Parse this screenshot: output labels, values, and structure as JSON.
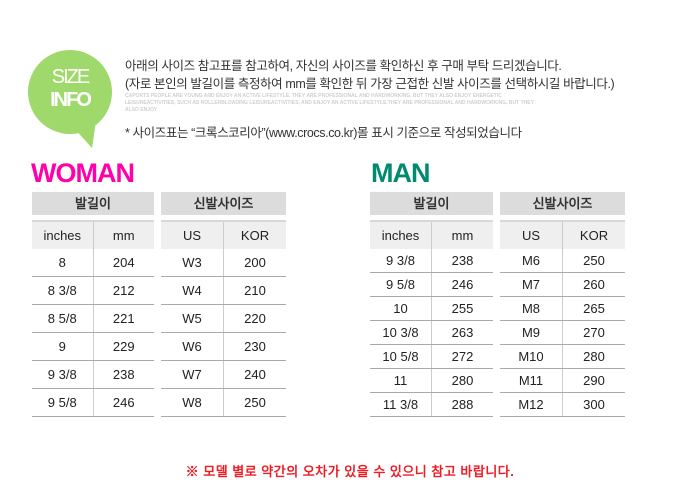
{
  "info_badge": {
    "line1": "SIZE",
    "line2": "INFO",
    "color": "#9fd96b"
  },
  "intro": {
    "line1": "아래의 사이즈 참고표를 참고하여, 자신의 사이즈를 확인하신 후 구매 부탁 드리겠습니다.",
    "line2": "(자로 본인의 발길이를 측정하여 mm를 확인한 뒤 가장 근접한 신발 사이즈를 선택하시길 바랍니다.)",
    "faint": "CAPORTS PEOPLE ARE YOUNG AND ENJOY AN ACTIVE LIFESTYLE. THEY ARE PROFESSIONAL AND HARDWORKING, BUT THEY ALSO ENJOY ENERGETIC LEISUREACTIVITIES, SUCH AS ROLLERBLOADING LEISUREACTIVITIES, AND ENJOY AN ACTIVE LIFESTYLE.THEY ARE PROFESSIONAL AND HARDWORKING, BUT THEY ALSO ENJOY",
    "source": "* 사이즈표는  “크록스코리아”(www.crocs.co.kr)몰 표시 기준으로 작성되었습니다"
  },
  "woman": {
    "title": "WOMAN",
    "color": "#ff00aa",
    "foot": {
      "label": "발길이",
      "cols": [
        "inches",
        "mm"
      ],
      "rows": [
        [
          "8",
          "204"
        ],
        [
          "8 3/8",
          "212"
        ],
        [
          "8 5/8",
          "221"
        ],
        [
          "9",
          "229"
        ],
        [
          "9 3/8",
          "238"
        ],
        [
          "9 5/8",
          "246"
        ]
      ]
    },
    "shoe": {
      "label": "신발사이즈",
      "cols": [
        "US",
        "KOR"
      ],
      "rows": [
        [
          "W3",
          "200"
        ],
        [
          "W4",
          "210"
        ],
        [
          "W5",
          "220"
        ],
        [
          "W6",
          "230"
        ],
        [
          "W7",
          "240"
        ],
        [
          "W8",
          "250"
        ]
      ]
    }
  },
  "man": {
    "title": "MAN",
    "color": "#008a6e",
    "foot": {
      "label": "발길이",
      "cols": [
        "inches",
        "mm"
      ],
      "rows": [
        [
          "9 3/8",
          "238"
        ],
        [
          "9 5/8",
          "246"
        ],
        [
          "10",
          "255"
        ],
        [
          "10 3/8",
          "263"
        ],
        [
          "10 5/8",
          "272"
        ],
        [
          "11",
          "280"
        ],
        [
          "11 3/8",
          "288"
        ]
      ]
    },
    "shoe": {
      "label": "신발사이즈",
      "cols": [
        "US",
        "KOR"
      ],
      "rows": [
        [
          "M6",
          "250"
        ],
        [
          "M7",
          "260"
        ],
        [
          "M8",
          "265"
        ],
        [
          "M9",
          "270"
        ],
        [
          "M10",
          "280"
        ],
        [
          "M11",
          "290"
        ],
        [
          "M12",
          "300"
        ]
      ]
    }
  },
  "note": "※ 모델 별로 약간의 오차가 있을 수 있으니 참고 바랍니다."
}
